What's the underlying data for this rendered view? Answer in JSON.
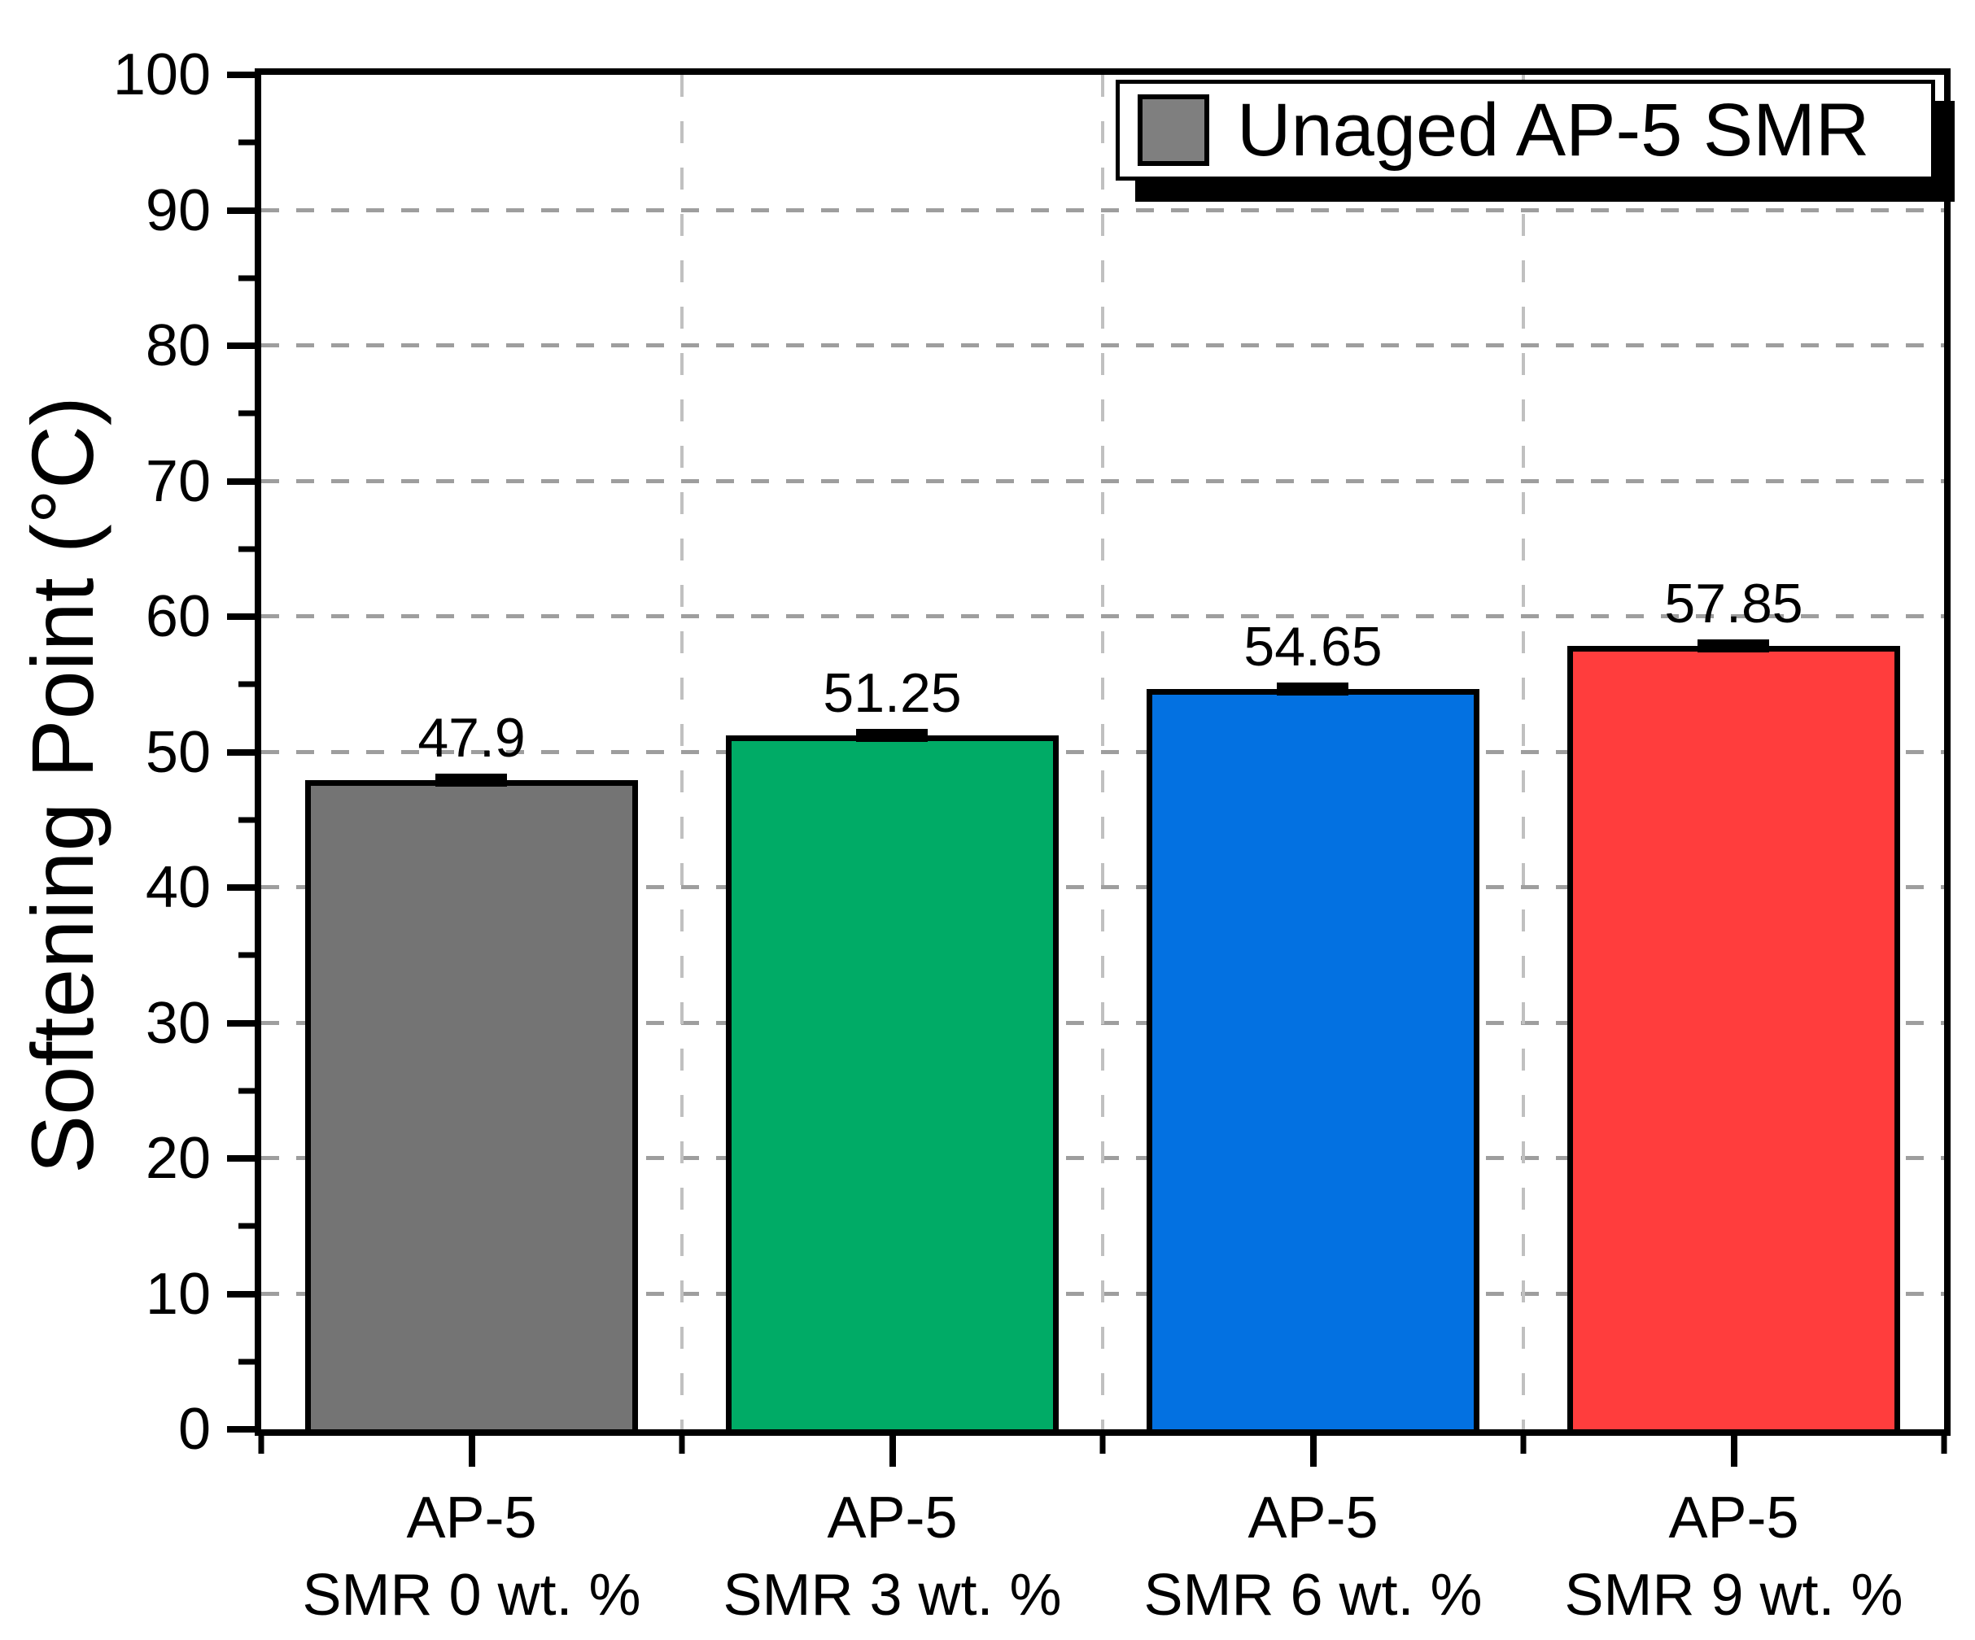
{
  "figure": {
    "background": "#FFFFFF"
  },
  "chart_data": {
    "type": "bar",
    "title": "",
    "xlabel": "",
    "ylabel": "Softening Point (°C)",
    "ylim": [
      0,
      100
    ],
    "y_major_step": 10,
    "y_minor_step": 5,
    "y_tick_labels": [
      "0",
      "10",
      "20",
      "30",
      "40",
      "50",
      "60",
      "70",
      "80",
      "90",
      "100"
    ],
    "grid": {
      "horizontal": "dashed at major y ticks",
      "vertical": "dashed at category boundaries",
      "h_color": "#9E9E9E",
      "v_color": "#C0C0C0"
    },
    "categories": [
      {
        "line1": "AP-5",
        "line2": "SMR 0 wt. %"
      },
      {
        "line1": "AP-5",
        "line2": "SMR 3 wt. %"
      },
      {
        "line1": "AP-5",
        "line2": "SMR 6 wt. %"
      },
      {
        "line1": "AP-5",
        "line2": "SMR 9 wt. %"
      }
    ],
    "values": [
      47.9,
      51.25,
      54.65,
      57.85
    ],
    "value_labels": [
      "47.9",
      "51.25",
      "54.65",
      "57.85"
    ],
    "bar_colors": [
      "#747474",
      "#00AB66",
      "#0371E1",
      "#FF3D3D"
    ],
    "bar_border_color": "#000000",
    "error_caps": true,
    "legend": {
      "label": "Unaged AP-5 SMR",
      "swatch_color": "#7F7F7F",
      "position": "top-right"
    }
  }
}
